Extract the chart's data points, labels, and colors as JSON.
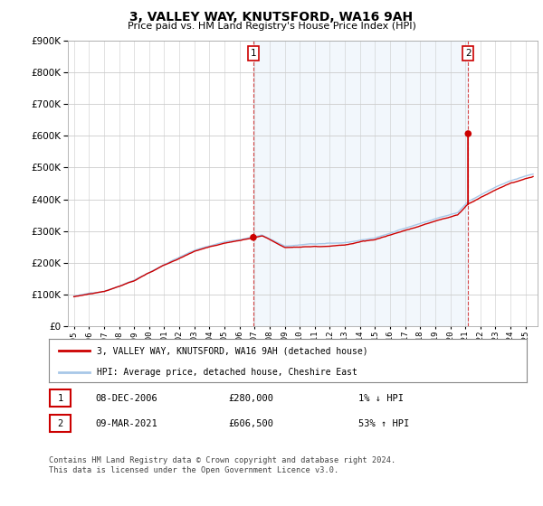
{
  "title": "3, VALLEY WAY, KNUTSFORD, WA16 9AH",
  "subtitle": "Price paid vs. HM Land Registry's House Price Index (HPI)",
  "legend_line1": "3, VALLEY WAY, KNUTSFORD, WA16 9AH (detached house)",
  "legend_line2": "HPI: Average price, detached house, Cheshire East",
  "annotation1_label": "1",
  "annotation1_date": "08-DEC-2006",
  "annotation1_price": "£280,000",
  "annotation1_hpi": "1% ↓ HPI",
  "annotation2_label": "2",
  "annotation2_date": "09-MAR-2021",
  "annotation2_price": "£606,500",
  "annotation2_hpi": "53% ↑ HPI",
  "footer": "Contains HM Land Registry data © Crown copyright and database right 2024.\nThis data is licensed under the Open Government Licence v3.0.",
  "hpi_color": "#a8c8e8",
  "price_color": "#cc0000",
  "annotation_color": "#cc0000",
  "shade_color": "#ddeeff",
  "background_color": "#ffffff",
  "ylim": [
    0,
    900000
  ],
  "yticks": [
    0,
    100000,
    200000,
    300000,
    400000,
    500000,
    600000,
    700000,
    800000,
    900000
  ],
  "xlabel_years": [
    "1995",
    "1996",
    "1997",
    "1998",
    "1999",
    "2000",
    "2001",
    "2002",
    "2003",
    "2004",
    "2005",
    "2006",
    "2007",
    "2008",
    "2009",
    "2010",
    "2011",
    "2012",
    "2013",
    "2014",
    "2015",
    "2016",
    "2017",
    "2018",
    "2019",
    "2020",
    "2021",
    "2022",
    "2023",
    "2024",
    "2025"
  ],
  "sale1_x": 2006.92,
  "sale1_y": 280000,
  "sale2_x": 2021.19,
  "sale2_y": 606500,
  "vline1_x": 2006.92,
  "vline2_x": 2021.19,
  "xmin": 1994.6,
  "xmax": 2025.8
}
